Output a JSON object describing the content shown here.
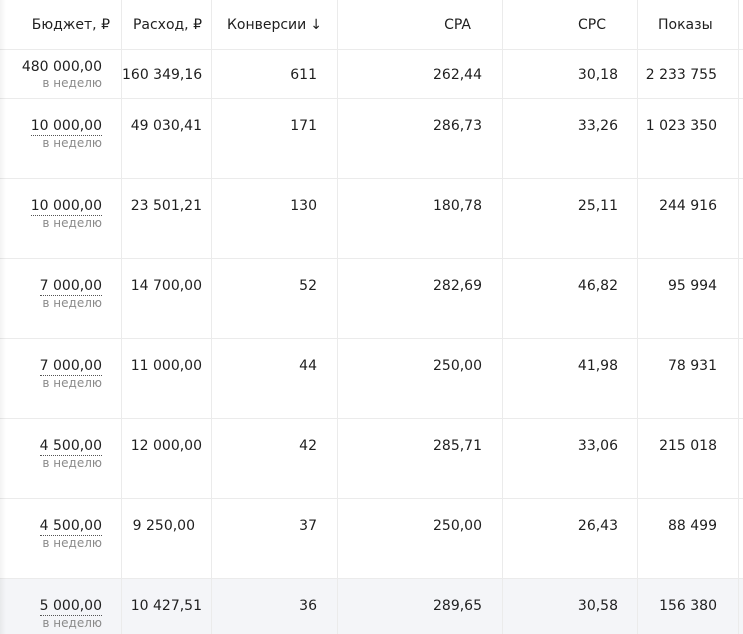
{
  "headers": {
    "budget": "Бюджет, ₽",
    "spend": "Расход, ₽",
    "conversions": "Конверсии",
    "conversions_sort_icon": "↓",
    "cpa": "CPA",
    "cpc": "CPC",
    "impressions": "Показы"
  },
  "rows": [
    {
      "budget": "480 000,00",
      "period": "в неделю",
      "spend": "160 349,16",
      "conversions": "611",
      "cpa": "262,44",
      "cpc": "30,18",
      "impressions": "2 233 755"
    },
    {
      "budget": "10 000,00",
      "period": "в неделю",
      "spend": "49 030,41",
      "conversions": "171",
      "cpa": "286,73",
      "cpc": "33,26",
      "impressions": "1 023 350"
    },
    {
      "budget": "10 000,00",
      "period": "в неделю",
      "spend": "23 501,21",
      "conversions": "130",
      "cpa": "180,78",
      "cpc": "25,11",
      "impressions": "244 916"
    },
    {
      "budget": "7 000,00",
      "period": "в неделю",
      "spend": "14 700,00",
      "conversions": "52",
      "cpa": "282,69",
      "cpc": "46,82",
      "impressions": "95 994"
    },
    {
      "budget": "7 000,00",
      "period": "в неделю",
      "spend": "11 000,00",
      "conversions": "44",
      "cpa": "250,00",
      "cpc": "41,98",
      "impressions": "78 931"
    },
    {
      "budget": "4 500,00",
      "period": "в неделю",
      "spend": "12 000,00",
      "conversions": "42",
      "cpa": "285,71",
      "cpc": "33,06",
      "impressions": "215 018"
    },
    {
      "budget": "4 500,00",
      "period": "в неделю",
      "spend": "9 250,00",
      "conversions": "37",
      "cpa": "250,00",
      "cpc": "26,43",
      "impressions": "88 499"
    },
    {
      "budget": "5 000,00",
      "period": "в неделю",
      "spend": "10 427,51",
      "conversions": "36",
      "cpa": "289,65",
      "cpc": "30,58",
      "impressions": "156 380"
    }
  ]
}
